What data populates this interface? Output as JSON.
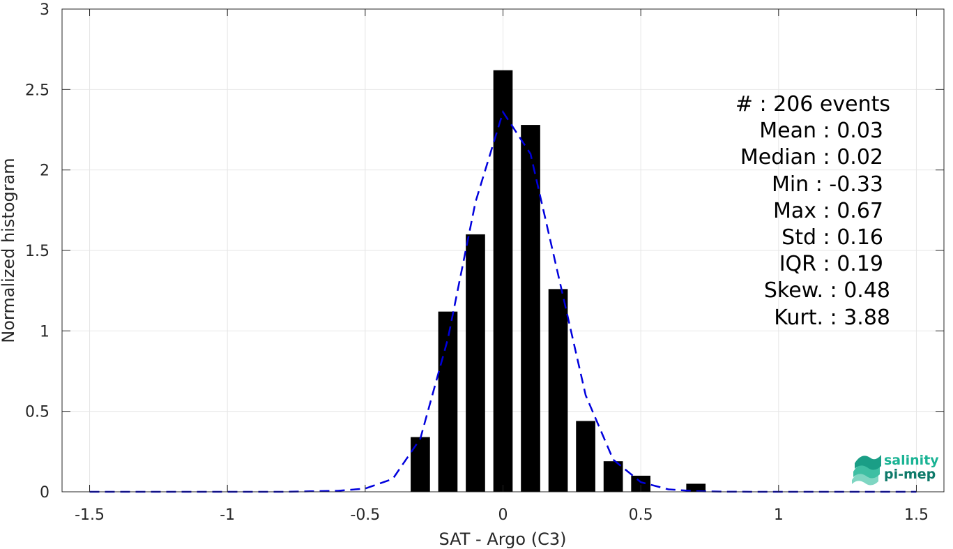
{
  "chart_data": {
    "type": "bar",
    "xlabel": "SAT - Argo (C3)",
    "ylabel": "Normalized histogram",
    "xlim": [
      -1.6,
      1.6
    ],
    "ylim": [
      0,
      3
    ],
    "xticks": [
      -1.5,
      -1,
      -0.5,
      0,
      0.5,
      1,
      1.5
    ],
    "xtick_labels": [
      "-1.5",
      "-1",
      "-0.5",
      "0",
      "0.5",
      "1",
      "1.5"
    ],
    "yticks": [
      0,
      0.5,
      1,
      1.5,
      2,
      2.5,
      3
    ],
    "ytick_labels": [
      "0",
      "0.5",
      "1",
      "1.5",
      "2",
      "2.5",
      "3"
    ],
    "grid": true,
    "bar_width": 0.07,
    "bar_color": "#000000",
    "bars": {
      "x": [
        -0.3,
        -0.2,
        -0.1,
        0.0,
        0.1,
        0.2,
        0.3,
        0.4,
        0.5,
        0.6,
        0.7
      ],
      "values": [
        0.34,
        1.12,
        1.6,
        2.62,
        2.28,
        1.26,
        0.44,
        0.19,
        0.1,
        0.0,
        0.05
      ]
    },
    "fit_curve": {
      "style": "dashed",
      "color": "#0000dd",
      "x": [
        -1.5,
        -1.4,
        -1.3,
        -1.2,
        -1.1,
        -1.0,
        -0.9,
        -0.8,
        -0.7,
        -0.6,
        -0.5,
        -0.4,
        -0.3,
        -0.2,
        -0.1,
        0.0,
        0.1,
        0.2,
        0.3,
        0.4,
        0.5,
        0.6,
        0.7,
        0.8,
        0.9,
        1.0,
        1.1,
        1.2,
        1.3,
        1.4,
        1.5
      ],
      "y": [
        0,
        0,
        0,
        0,
        0,
        0,
        0,
        0,
        0.003,
        0.006,
        0.02,
        0.08,
        0.33,
        0.95,
        1.8,
        2.36,
        2.1,
        1.35,
        0.6,
        0.2,
        0.06,
        0.015,
        0.004,
        0.001,
        0,
        0,
        0,
        0,
        0,
        0,
        0
      ]
    },
    "stats": {
      "count": "#  : 206 events",
      "mean": "Mean : 0.03",
      "median": "Median : 0.02",
      "min": "Min : -0.33",
      "max": "Max : 0.67",
      "std": "Std : 0.16",
      "iqr": "IQR : 0.19",
      "skew": "Skew. : 0.48",
      "kurt": "Kurt. : 3.88"
    }
  },
  "logo": {
    "line1": "salinity",
    "line2": "pi-mep",
    "color_top": "#1ab394",
    "color_bottom": "#0e7a6a"
  }
}
